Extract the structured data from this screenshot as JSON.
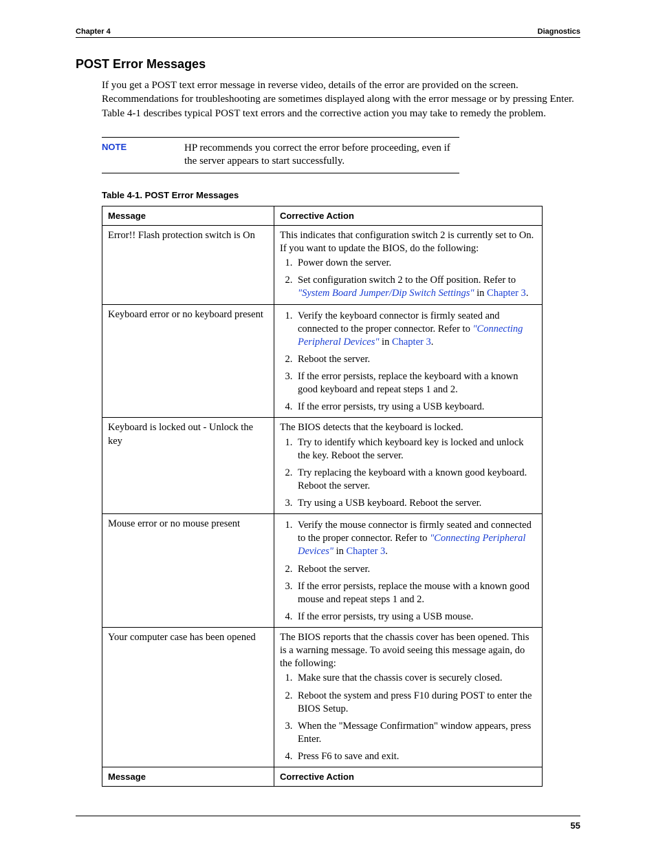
{
  "header": {
    "left": "Chapter 4",
    "right": "Diagnostics"
  },
  "section_title": "POST Error Messages",
  "intro": "If you get a POST text error message in reverse video, details of the error are provided on the screen. Recommendations for troubleshooting are sometimes displayed along with the error message or by pressing Enter. Table 4-1 describes typical POST text errors and the corrective action you may take to remedy the problem.",
  "note": {
    "label": "NOTE",
    "text": "HP recommends you correct the error before proceeding, even if the server appears to start successfully."
  },
  "table": {
    "caption": "Table 4-1.  POST Error Messages",
    "head_message": "Message",
    "head_action": "Corrective Action",
    "rows": [
      {
        "message": "Error!! Flash protection switch is On",
        "lead": "This indicates that configuration switch 2 is currently set to On. If you want to update the BIOS, do the following:",
        "steps": [
          {
            "text": "Power down the server."
          },
          {
            "text": "Set configuration switch 2 to the Off position. Refer to ",
            "link1": "\"System Board Jumper/Dip Switch Settings\"",
            "mid": " in ",
            "link2": "Chapter 3",
            "tail": "."
          }
        ]
      },
      {
        "message": "Keyboard error or no keyboard present",
        "lead": "",
        "steps": [
          {
            "text": "Verify the keyboard connector is firmly seated and connected to the proper connector. Refer to ",
            "link1": "\"Connecting Peripheral Devices\"",
            "mid": "  in ",
            "link2": "Chapter 3",
            "tail": "."
          },
          {
            "text": "Reboot the server."
          },
          {
            "text": "If the error persists, replace the keyboard with a known good keyboard and repeat steps 1 and 2."
          },
          {
            "text": "If the error persists, try using a USB keyboard."
          }
        ]
      },
      {
        "message": "Keyboard is locked out - Unlock the key",
        "lead": "The BIOS detects that the keyboard is locked.",
        "steps": [
          {
            "text": "Try to identify which keyboard key is locked and unlock the key. Reboot the server."
          },
          {
            "text": "Try replacing the keyboard with a known good keyboard. Reboot the server."
          },
          {
            "text": "Try using a USB keyboard. Reboot the server."
          }
        ]
      },
      {
        "message": "Mouse error or no mouse present",
        "lead": "",
        "steps": [
          {
            "text": "Verify the mouse connector is firmly seated and connected to the proper connector. Refer to ",
            "link1": "\"Connecting Peripheral Devices\"",
            "mid": "  in ",
            "link2": "Chapter 3",
            "tail": "."
          },
          {
            "text": "Reboot the server."
          },
          {
            "text": "If the error persists, replace the mouse with a known good mouse and repeat steps 1 and 2."
          },
          {
            "text": "If the error persists, try using a USB mouse."
          }
        ]
      },
      {
        "message": "Your computer case has been opened",
        "lead": "The BIOS reports that the chassis cover has been opened. This is a warning message. To avoid seeing this message again, do the following:",
        "steps": [
          {
            "text": "Make sure that the chassis cover is securely closed."
          },
          {
            "text": "Reboot the system and press F10 during POST to enter the BIOS Setup."
          },
          {
            "text": "When the \"Message Confirmation\" window appears, press Enter."
          },
          {
            "text": "Press F6 to save and exit."
          }
        ]
      }
    ],
    "foot_message": "Message",
    "foot_action": "Corrective Action"
  },
  "page_number": "55",
  "colors": {
    "link": "#1a3fd4",
    "text": "#000000",
    "background": "#ffffff"
  }
}
